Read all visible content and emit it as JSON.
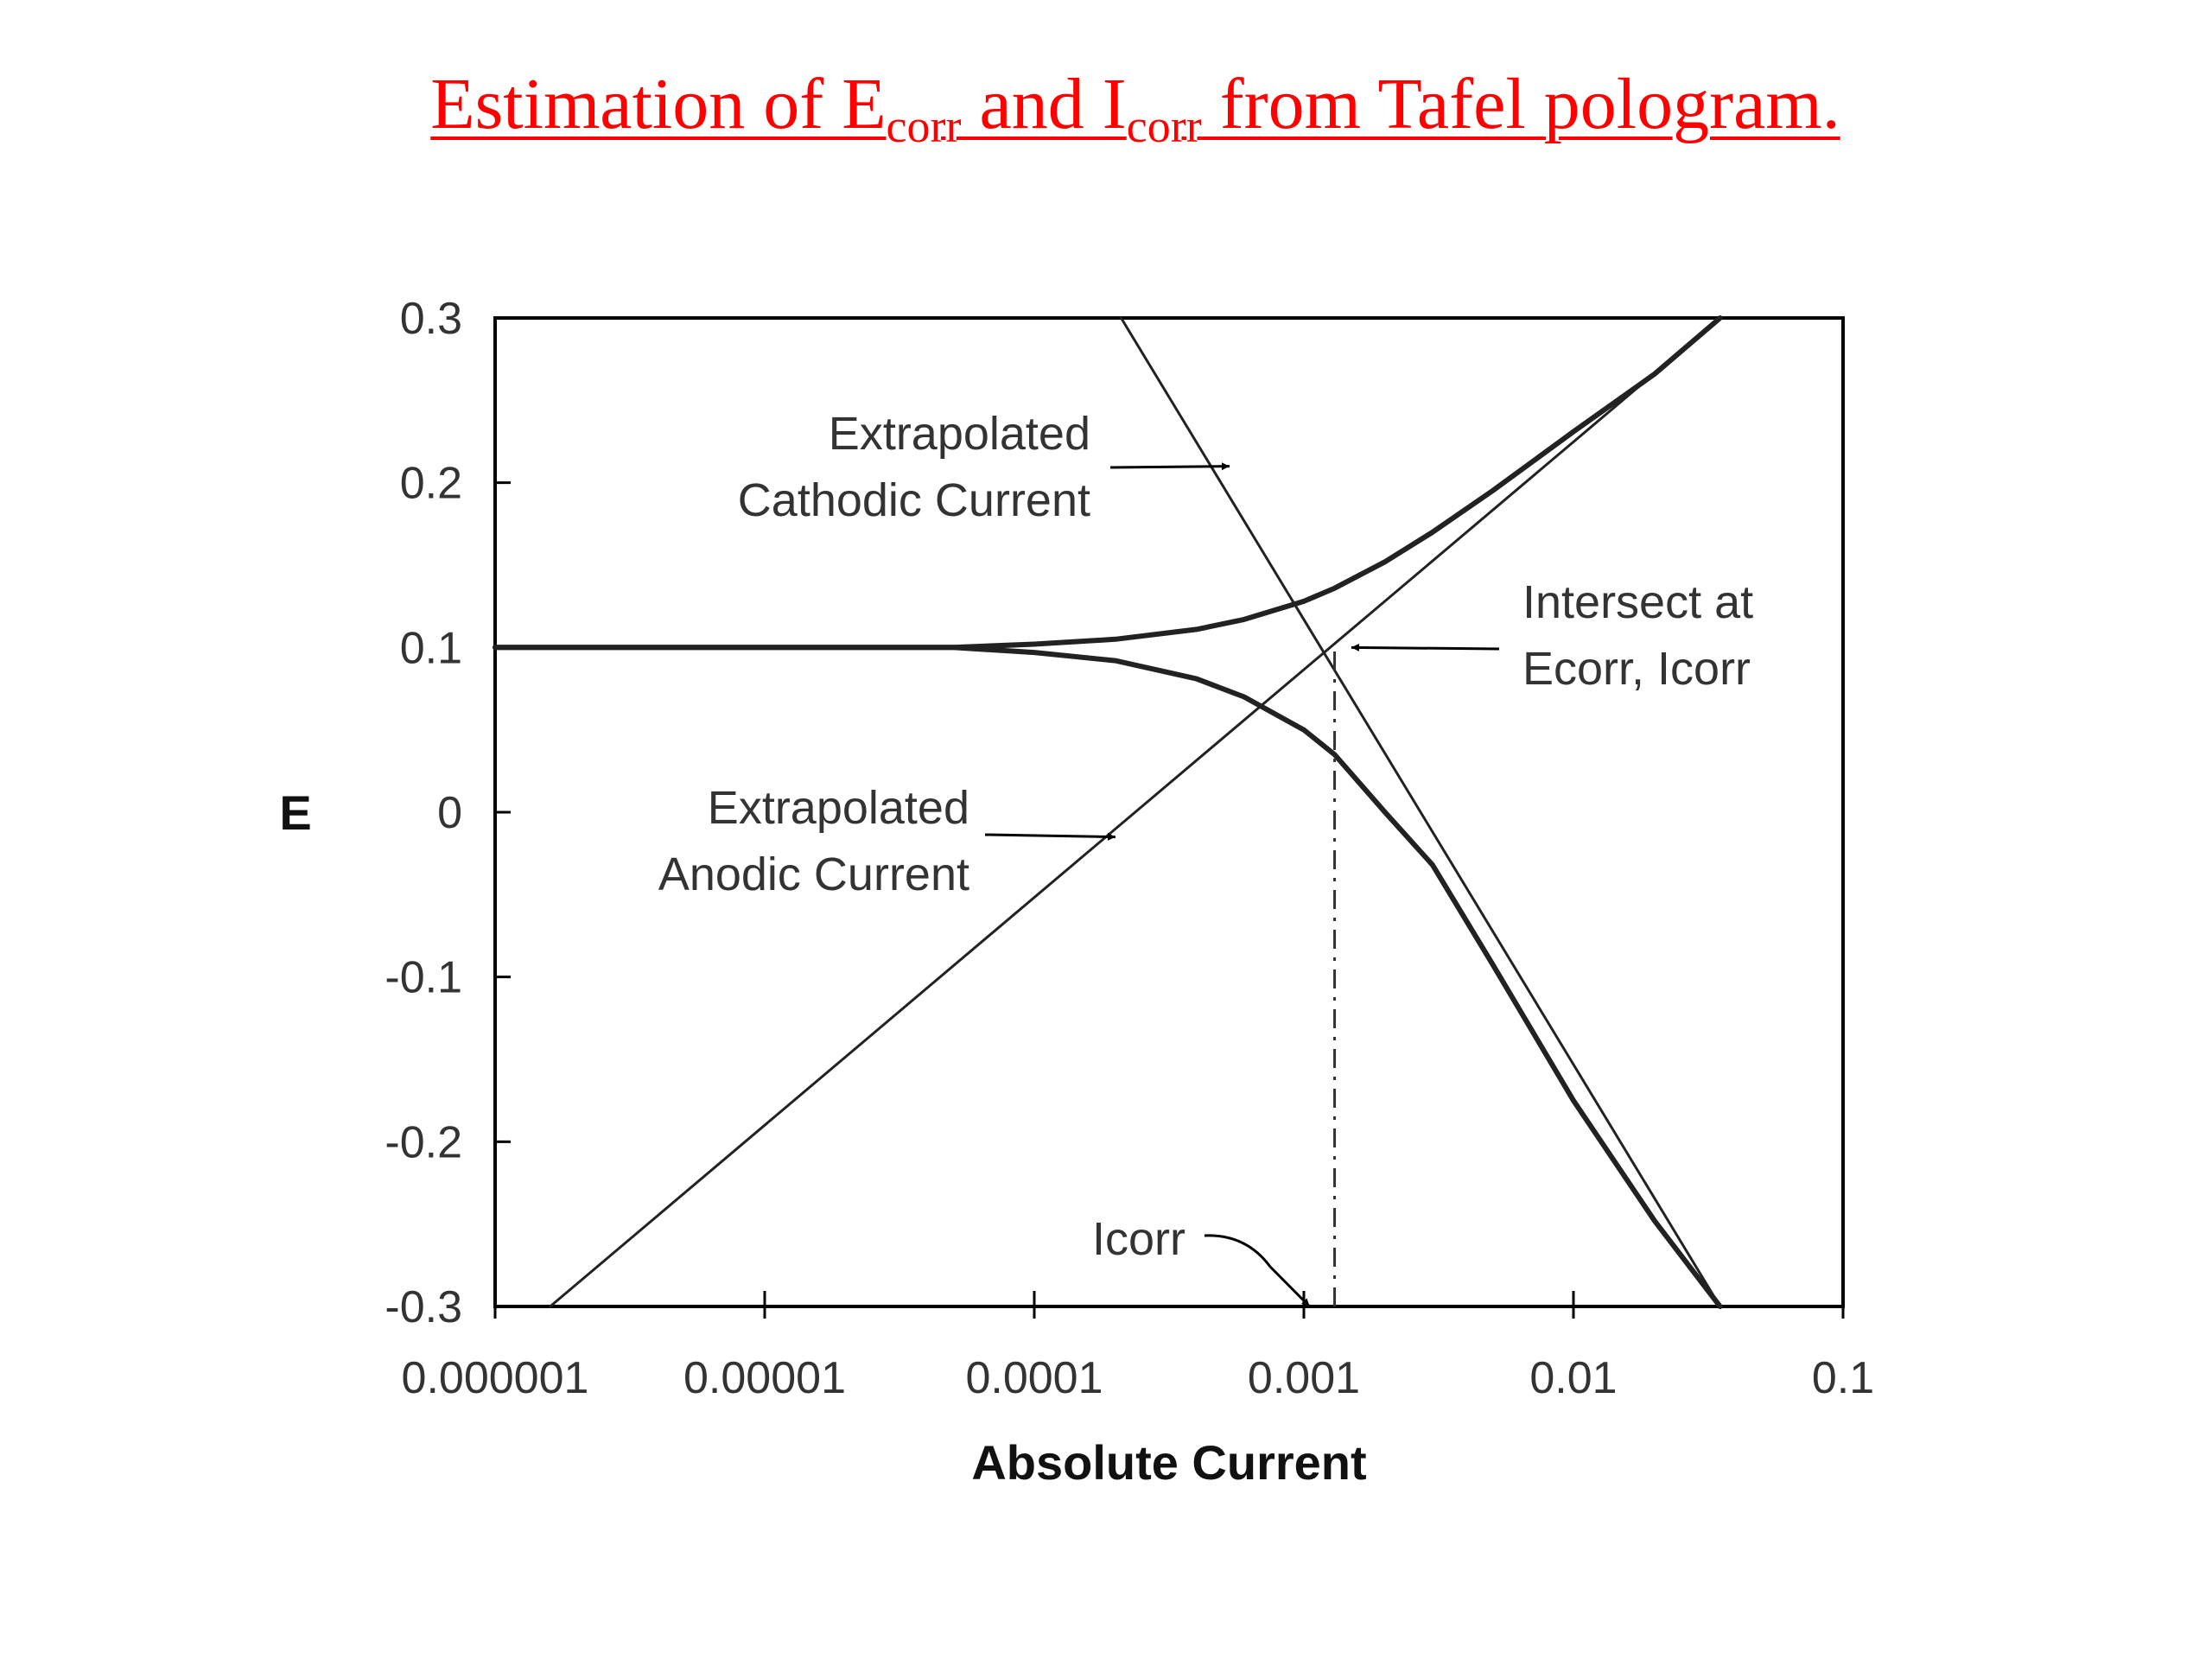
{
  "slide": {
    "title_part1": "Estimation of E",
    "title_sub1": "corr",
    "title_part2": " and I",
    "title_sub2": "corr",
    "title_part3": " from Tafel pologram.",
    "title_color": "#ff0000"
  },
  "chart_data": {
    "type": "line",
    "xlabel": "Absolute Current",
    "ylabel": "E",
    "x_scale": "log",
    "xlim": [
      1e-06,
      0.1
    ],
    "ylim": [
      -0.3,
      0.3
    ],
    "x_ticks": [
      1e-06,
      1e-05,
      0.0001,
      0.001,
      0.01,
      0.1
    ],
    "x_tick_labels": [
      "0.000001",
      "0.00001",
      "0.0001",
      "0.001",
      "0.01",
      "0.1"
    ],
    "y_ticks": [
      0.3,
      0.2,
      0.1,
      0,
      -0.1,
      -0.2,
      -0.3
    ],
    "y_tick_labels": [
      "0.3",
      "0.2",
      "0.1",
      "0",
      "-0.1",
      "-0.2",
      "-0.3"
    ],
    "grid": false,
    "legend": "none",
    "series": [
      {
        "x": [
          1e-06,
          1e-05,
          5e-05,
          0.0001,
          0.0002,
          0.0004,
          0.0006,
          0.001,
          0.0013,
          0.002,
          0.003,
          0.005,
          0.01,
          0.02,
          0.035
        ],
        "y": [
          0.1,
          0.1,
          0.1,
          0.102,
          0.105,
          0.111,
          0.117,
          0.128,
          0.136,
          0.152,
          0.17,
          0.195,
          0.231,
          0.266,
          0.3
        ]
      },
      {
        "x": [
          1e-06,
          1e-05,
          5e-05,
          0.0001,
          0.0002,
          0.0004,
          0.0006,
          0.001,
          0.0013,
          0.002,
          0.003,
          0.005,
          0.01,
          0.02,
          0.035
        ],
        "y": [
          0.1,
          0.1,
          0.1,
          0.097,
          0.092,
          0.081,
          0.07,
          0.05,
          0.035,
          0.0,
          -0.032,
          -0.092,
          -0.175,
          -0.248,
          -0.3
        ]
      },
      {
        "x": [
          1.6e-06,
          0.035
        ],
        "y": [
          -0.3,
          0.3
        ]
      },
      {
        "x": [
          0.00021,
          0.035
        ],
        "y": [
          0.3,
          -0.3
        ]
      }
    ],
    "corrosion_point": {
      "x": 0.0013,
      "y": 0.1
    },
    "icorr_dropline": {
      "x": 0.0013,
      "y": [
        -0.3,
        0.1
      ]
    },
    "annotations": [
      {
        "line1": "Extrapolated",
        "line2": "Cathodic Current",
        "arrow_to": {
          "x": 0.00053,
          "y": 0.21
        }
      },
      {
        "line1": "Extrapolated",
        "line2": "Anodic Current",
        "arrow_to": {
          "x": 0.0002,
          "y": -0.015
        }
      },
      {
        "line1": "Intersect at",
        "line2": "Ecorr, Icorr",
        "arrow_to": {
          "x": 0.0015,
          "y": 0.1
        }
      },
      {
        "line1": "Icorr",
        "arrow_to": {
          "x": 0.00105,
          "y": -0.3
        }
      }
    ]
  }
}
